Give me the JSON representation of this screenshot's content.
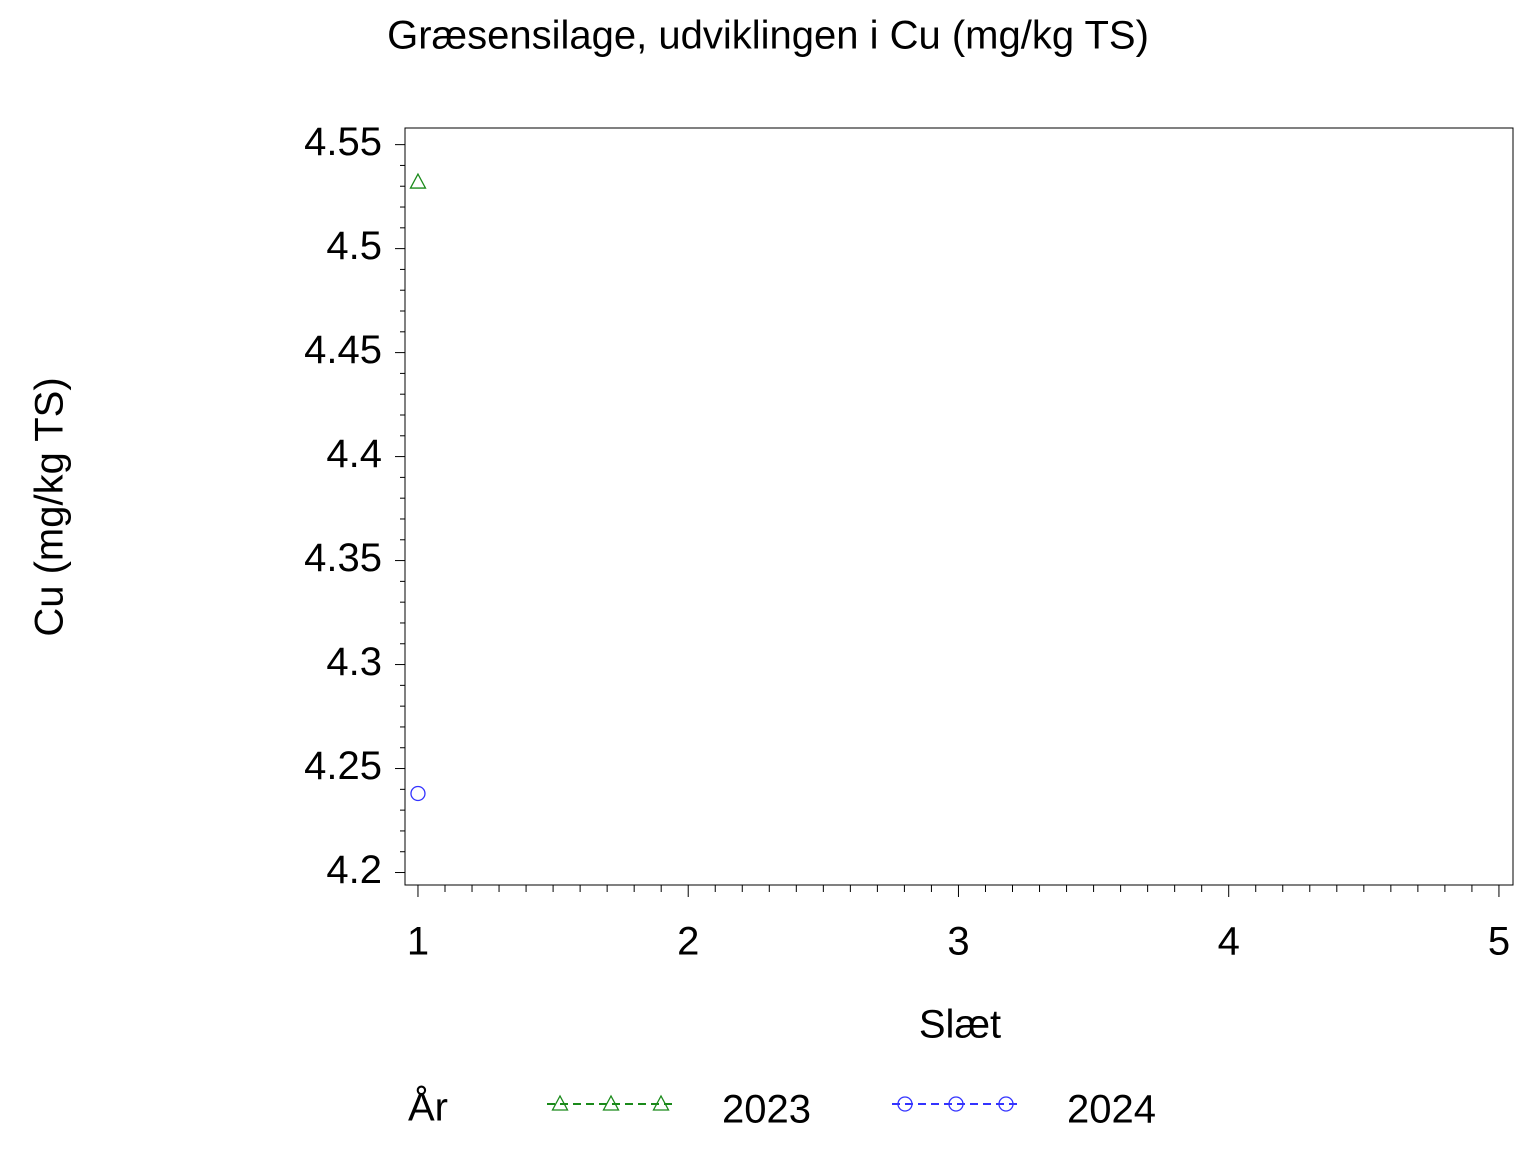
{
  "chart_data": {
    "type": "line",
    "title": "Græsensilage, udviklingen i Cu (mg/kg TS)",
    "x_label": "Slæt",
    "y_label": "Cu (mg/kg TS)",
    "legend_title": "År",
    "xlim": [
      0.952,
      5.052
    ],
    "xticks": [
      1,
      2,
      3,
      4,
      5
    ],
    "ylim": [
      4.194,
      4.558
    ],
    "yticks": [
      4.2,
      4.25,
      4.3,
      4.35,
      4.4,
      4.45,
      4.5,
      4.55
    ],
    "series": [
      {
        "name": "2023",
        "color": "#1a8a1a",
        "marker": "triangle",
        "x": [
          1
        ],
        "values": [
          4.532
        ]
      },
      {
        "name": "2024",
        "color": "#3333ff",
        "marker": "circle",
        "x": [
          1
        ],
        "values": [
          4.238
        ]
      }
    ]
  }
}
